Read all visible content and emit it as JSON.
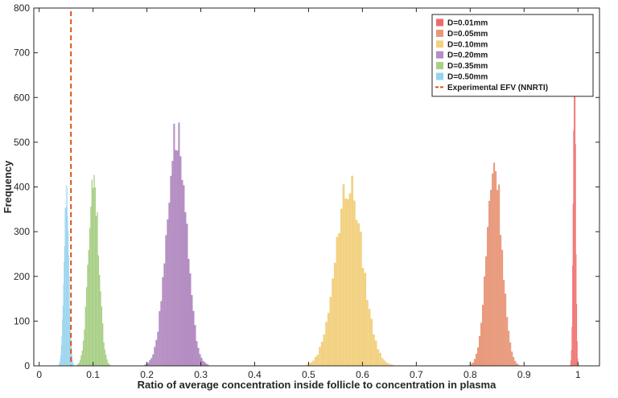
{
  "chart_data": {
    "type": "histogram",
    "title": "",
    "xlabel": "Ratio of average concentration inside follicle to concentration in plasma",
    "ylabel": "Frequency",
    "xlim": [
      -0.01,
      1.04
    ],
    "ylim": [
      0,
      800
    ],
    "xticks": [
      0,
      0.1,
      0.2,
      0.3,
      0.4,
      0.5,
      0.6,
      0.7,
      0.8,
      0.9,
      1
    ],
    "xtick_labels": [
      "0",
      "0.1",
      "0.2",
      "0.3",
      "0.4",
      "0.5",
      "0.6",
      "0.7",
      "0.8",
      "0.9",
      "1"
    ],
    "yticks": [
      0,
      100,
      200,
      300,
      400,
      500,
      600,
      700,
      800
    ],
    "ytick_labels": [
      "0",
      "100",
      "200",
      "300",
      "400",
      "500",
      "600",
      "700",
      "800"
    ],
    "grid": false,
    "legend_position": "top-right",
    "series": [
      {
        "name": "D=0.01mm",
        "color": "#ef6b6b",
        "mean": 0.9935,
        "sd": 0.0023,
        "peak": 760,
        "bin": 0.001
      },
      {
        "name": "D=0.05mm",
        "color": "#e8987a",
        "mean": 0.845,
        "sd": 0.014,
        "peak": 455,
        "bin": 0.003
      },
      {
        "name": "D=0.10mm",
        "color": "#f2d181",
        "mean": 0.575,
        "sd": 0.025,
        "peak": 405,
        "bin": 0.004
      },
      {
        "name": "D=0.20mm",
        "color": "#b48dc2",
        "mean": 0.255,
        "sd": 0.018,
        "peak": 522,
        "bin": 0.003
      },
      {
        "name": "D=0.35mm",
        "color": "#a9cf87",
        "mean": 0.101,
        "sd": 0.0095,
        "peak": 428,
        "bin": 0.002
      },
      {
        "name": "D=0.50mm",
        "color": "#96d3ee",
        "mean": 0.0505,
        "sd": 0.0045,
        "peak": 392,
        "bin": 0.001
      }
    ],
    "reference_line": {
      "name": "Experimental EFV (NNRTI)",
      "x": 0.059,
      "color": "#d9531e",
      "style": "dashed"
    }
  }
}
